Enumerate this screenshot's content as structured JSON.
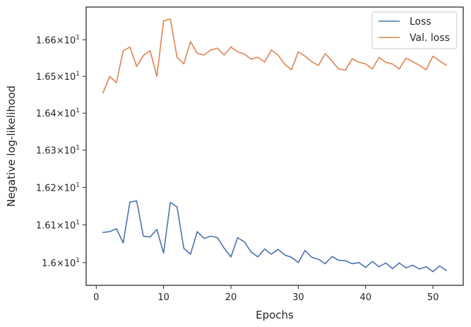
{
  "chart_data": {
    "type": "line",
    "xlabel": "Epochs",
    "ylabel": "Negative log-likelihood",
    "xlim": [
      -1.5,
      54.5
    ],
    "ylim": [
      15.94,
      16.69
    ],
    "yscale": "log",
    "grid": false,
    "legend_position": "top-right",
    "x_ticks": [
      0,
      10,
      20,
      30,
      40,
      50
    ],
    "x_tick_labels": [
      "0",
      "10",
      "20",
      "30",
      "40",
      "50"
    ],
    "y_ticks": [
      16.0,
      16.1,
      16.2,
      16.3,
      16.4,
      16.5,
      16.6
    ],
    "y_tick_labels": [
      {
        "mantissa": "1.6",
        "exponent": "1"
      },
      {
        "mantissa": "1.61",
        "exponent": "1"
      },
      {
        "mantissa": "1.62",
        "exponent": "1"
      },
      {
        "mantissa": "1.63",
        "exponent": "1"
      },
      {
        "mantissa": "1.64",
        "exponent": "1"
      },
      {
        "mantissa": "1.65",
        "exponent": "1"
      },
      {
        "mantissa": "1.66",
        "exponent": "1"
      }
    ],
    "x": [
      1,
      2,
      3,
      4,
      5,
      6,
      7,
      8,
      9,
      10,
      11,
      12,
      13,
      14,
      15,
      16,
      17,
      18,
      19,
      20,
      21,
      22,
      23,
      24,
      25,
      26,
      27,
      28,
      29,
      30,
      31,
      32,
      33,
      34,
      35,
      36,
      37,
      38,
      39,
      40,
      41,
      42,
      43,
      44,
      45,
      46,
      47,
      48,
      49,
      50,
      51,
      52
    ],
    "series": [
      {
        "name": "Loss",
        "color": "#4c72b0",
        "values": [
          16.08,
          16.082,
          16.09,
          16.052,
          16.161,
          16.164,
          16.07,
          16.068,
          16.088,
          16.025,
          16.16,
          16.148,
          16.038,
          16.022,
          16.082,
          16.064,
          16.07,
          16.066,
          16.038,
          16.015,
          16.066,
          16.055,
          16.028,
          16.015,
          16.036,
          16.022,
          16.035,
          16.02,
          16.014,
          16.0,
          16.032,
          16.014,
          16.009,
          15.997,
          16.016,
          16.006,
          16.005,
          15.997,
          16.0,
          15.987,
          16.003,
          15.989,
          15.999,
          15.984,
          15.999,
          15.986,
          15.993,
          15.983,
          15.989,
          15.976,
          15.991,
          15.979
        ]
      },
      {
        "name": "Val. loss",
        "color": "#dd8452",
        "values": [
          16.455,
          16.5,
          16.483,
          16.57,
          16.58,
          16.527,
          16.557,
          16.57,
          16.5,
          16.652,
          16.657,
          16.552,
          16.534,
          16.595,
          16.563,
          16.558,
          16.572,
          16.577,
          16.558,
          16.58,
          16.567,
          16.561,
          16.547,
          16.552,
          16.539,
          16.572,
          16.558,
          16.533,
          16.518,
          16.567,
          16.555,
          16.54,
          16.53,
          16.562,
          16.542,
          16.52,
          16.517,
          16.548,
          16.539,
          16.534,
          16.52,
          16.552,
          16.538,
          16.534,
          16.52,
          16.55,
          16.54,
          16.53,
          16.518,
          16.555,
          16.542,
          16.53
        ]
      }
    ]
  }
}
